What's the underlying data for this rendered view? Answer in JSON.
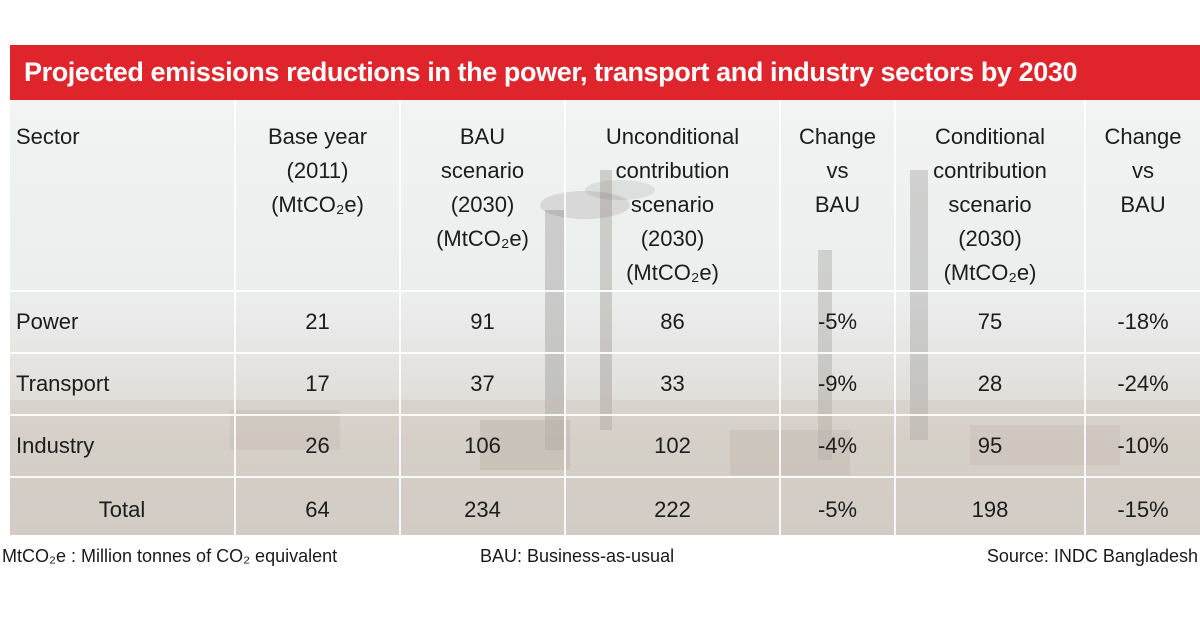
{
  "title": "Projected emissions reductions in the power, transport and industry sectors by 2030",
  "colors": {
    "title_bar": "#e0242b",
    "title_text": "#ffffff",
    "table_bg": "#eceeee",
    "text": "#1c1c1c"
  },
  "table": {
    "headers": {
      "sector": "Sector",
      "base_year": [
        "Base year",
        "(2011)",
        "(MtCO₂e)"
      ],
      "bau": [
        "BAU",
        "scenario",
        "(2030)",
        "(MtCO₂e)"
      ],
      "unconditional": [
        "Unconditional",
        "contribution",
        "scenario",
        "(2030)",
        "(MtCO₂e)"
      ],
      "change_unconditional": [
        "Change",
        "vs",
        "BAU"
      ],
      "conditional": [
        "Conditional",
        "contribution",
        "scenario",
        "(2030)",
        "(MtCO₂e)"
      ],
      "change_conditional": [
        "Change",
        "vs",
        "BAU"
      ]
    },
    "rows": [
      {
        "sector": "Power",
        "base_year": "21",
        "bau": "91",
        "unconditional": "86",
        "change_unconditional": "-5%",
        "conditional": "75",
        "change_conditional": "-18%"
      },
      {
        "sector": "Transport",
        "base_year": "17",
        "bau": "37",
        "unconditional": "33",
        "change_unconditional": "-9%",
        "conditional": "28",
        "change_conditional": "-24%"
      },
      {
        "sector": "Industry",
        "base_year": "26",
        "bau": "106",
        "unconditional": "102",
        "change_unconditional": "-4%",
        "conditional": "95",
        "change_conditional": "-10%"
      },
      {
        "sector": "Total",
        "base_year": "64",
        "bau": "234",
        "unconditional": "222",
        "change_unconditional": "-5%",
        "conditional": "198",
        "change_conditional": "-15%"
      }
    ]
  },
  "footer": {
    "unit_note": "MtCO₂e : Million tonnes of CO₂ equivalent",
    "bau_note": "BAU: Business-as-usual",
    "source": "Source: INDC Bangladesh"
  }
}
